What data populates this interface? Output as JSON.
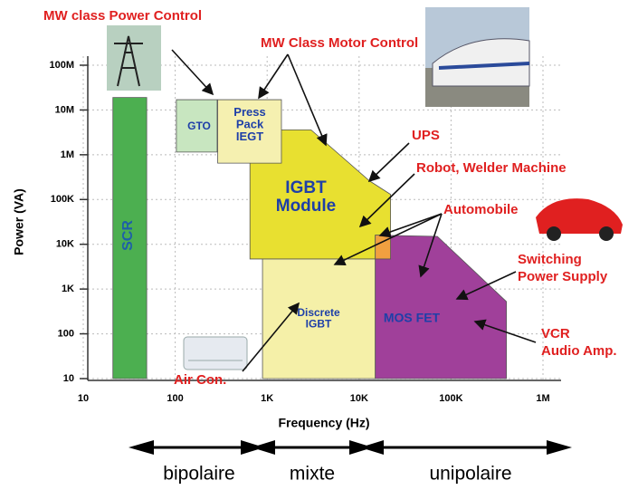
{
  "chart_data": {
    "type": "region",
    "xlabel": "Frequency (Hz)",
    "ylabel": "Power (VA)",
    "xscale": "log",
    "yscale": "log",
    "xlim": [
      10,
      1000000
    ],
    "ylim": [
      10,
      100000000
    ],
    "xticks": [
      10,
      100,
      {
        "value": 1000,
        "label": "1K"
      },
      {
        "value": 10000,
        "label": "10K"
      },
      {
        "value": 100000,
        "label": "100K"
      },
      {
        "value": 1000000,
        "label": "1M"
      }
    ],
    "yticks": [
      10,
      100,
      {
        "value": 1000,
        "label": "1K"
      },
      {
        "value": 10000,
        "label": "10K"
      },
      {
        "value": 100000,
        "label": "100K"
      },
      {
        "value": 1000000,
        "label": "1M"
      },
      {
        "value": 10000000,
        "label": "10M"
      },
      {
        "value": 100000000,
        "label": "100M"
      }
    ],
    "grid": true,
    "regions": [
      {
        "label": [
          "SCR"
        ],
        "color": "#4caf50",
        "text_color": "#1e5fa8",
        "x": [
          21,
          49,
          49,
          21
        ],
        "y": [
          10,
          10,
          19000000,
          19000000
        ]
      },
      {
        "label": [
          "GTO"
        ],
        "color": "#c8e6c0",
        "text_color": "#1e3fa8",
        "x": [
          103,
          286,
          286,
          103
        ],
        "y": [
          1150000,
          1150000,
          17000000,
          17000000
        ]
      },
      {
        "label": [
          "IGBT",
          "Module"
        ],
        "color": "#e8e030",
        "text_color": "#1e3fa8",
        "x": [
          650,
          650,
          3000,
          13000,
          22000,
          22000
        ],
        "y": [
          4700,
          3600000,
          3600000,
          260000,
          130000,
          4700
        ]
      },
      {
        "label": [
          "Press",
          "Pack",
          "IEGT"
        ],
        "color": "#f5f0b0",
        "text_color": "#1e3fa8",
        "x": [
          290,
          1430,
          1430,
          290
        ],
        "y": [
          650000,
          650000,
          17000000,
          17000000
        ]
      },
      {
        "label": [
          "Discrete",
          "IGBT"
        ],
        "color": "#f5f0a8",
        "text_color": "#1e3fa8",
        "x": [
          890,
          15000,
          15000,
          890
        ],
        "y": [
          10,
          10,
          4700,
          4700
        ]
      },
      {
        "label": [
          "MOS FET"
        ],
        "color": "#a0409a",
        "text_color": "#1e3fa8",
        "x": [
          15000,
          15000,
          71000,
          400000,
          400000
        ],
        "y": [
          10,
          16000,
          15000,
          525,
          10
        ]
      },
      {
        "color": "#f0a040",
        "x": [
          15000,
          22000,
          22000,
          15000
        ],
        "y": [
          4700,
          4700,
          16000,
          16000
        ]
      }
    ],
    "annotations": [
      [
        "MW class Power Control"
      ],
      [
        "MW Class Motor Control"
      ],
      [
        "UPS"
      ],
      [
        "Robot, Welder Machine"
      ],
      [
        "Automobile"
      ],
      [
        "Switching",
        "Power Supply"
      ],
      [
        "VCR",
        "Audio Amp."
      ],
      [
        "Air Con."
      ]
    ],
    "bands": [
      "bipolaire",
      "mixte",
      "unipolaire"
    ]
  }
}
